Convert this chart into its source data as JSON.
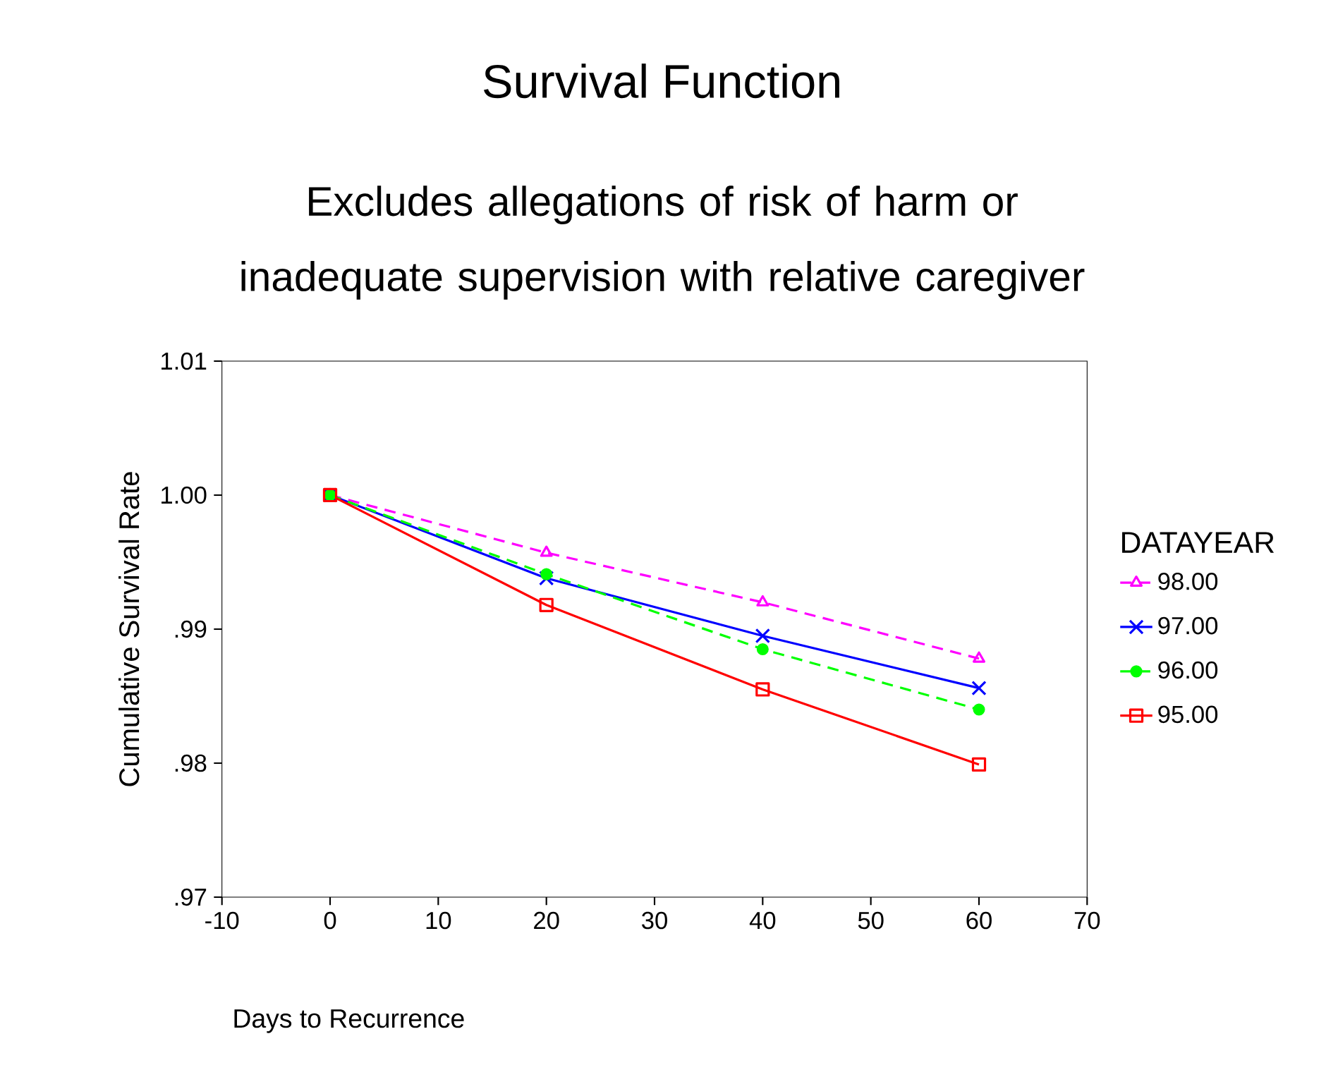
{
  "chart_data": {
    "type": "line",
    "title": "Survival Function",
    "subtitle": "Excludes allegations of risk of harm or inadequate supervision with relative caregiver",
    "xlabel": "Days to Recurrence",
    "ylabel": "Cumulative Survival Rate",
    "legend_title": "DATAYEAR",
    "legend": "right",
    "grid": false,
    "xlim": [
      -10,
      70
    ],
    "xticks": [
      -10,
      0,
      10,
      20,
      30,
      40,
      50,
      60,
      70
    ],
    "ylim": [
      0.97,
      1.01
    ],
    "yticks": [
      {
        "value": 0.97,
        "label": ".97"
      },
      {
        "value": 0.98,
        "label": ".98"
      },
      {
        "value": 0.99,
        "label": ".99"
      },
      {
        "value": 1.0,
        "label": "1.00"
      },
      {
        "value": 1.01,
        "label": "1.01"
      }
    ],
    "x": [
      0,
      20,
      40,
      60
    ],
    "series": [
      {
        "name": "98.00",
        "color": "#ff00ff",
        "marker": "triangle",
        "line_style": "dashed",
        "values": [
          1.0,
          0.9957,
          0.992,
          0.9878
        ]
      },
      {
        "name": "97.00",
        "color": "#0000ff",
        "marker": "cross",
        "line_style": "solid",
        "values": [
          1.0,
          0.9938,
          0.9895,
          0.9856
        ]
      },
      {
        "name": "96.00",
        "color": "#00ff00",
        "marker": "circle",
        "line_style": "dashed",
        "values": [
          1.0,
          0.9941,
          0.9885,
          0.984
        ]
      },
      {
        "name": "95.00",
        "color": "#ff0000",
        "marker": "square",
        "line_style": "solid",
        "values": [
          1.0,
          0.9918,
          0.9855,
          0.9799
        ]
      }
    ]
  }
}
